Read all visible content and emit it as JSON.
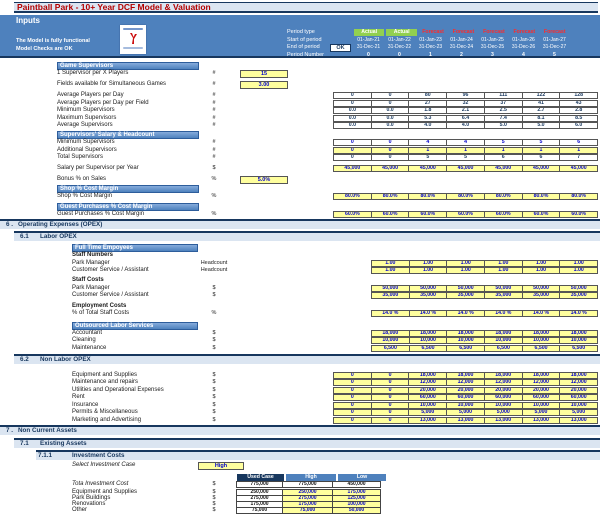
{
  "title": "Paintball Park - 10+ Year DCF Model & Valuation",
  "subtitle": "Inputs",
  "status": {
    "line1": "The Model is fully functional",
    "line2": "Model Checks are OK",
    "ok_badge": "OK"
  },
  "colors": {
    "header_blue": "#4e81bd",
    "navy": "#17375e",
    "title_red": "#b30000",
    "input_yellow": "#ffff9e",
    "actual_green": "#92d050",
    "forecast_red": "#ff2a2a",
    "formula_blue": "#0000cc"
  },
  "period": {
    "labels": {
      "type": "Period type",
      "start": "Start of period",
      "end": "End of period",
      "number": "Period Number"
    },
    "types": [
      {
        "label": "Actual",
        "kind": "actual"
      },
      {
        "label": "Actual",
        "kind": "actual"
      },
      {
        "label": "Forecast",
        "kind": "forecast"
      },
      {
        "label": "Forecast",
        "kind": "forecast"
      },
      {
        "label": "Forecast",
        "kind": "forecast"
      },
      {
        "label": "Forecast",
        "kind": "forecast"
      },
      {
        "label": "Forecast",
        "kind": "forecast"
      }
    ],
    "start": [
      "01-Jan-21",
      "01-Jan-22",
      "01-Jan-23",
      "01-Jan-24",
      "01-Jan-25",
      "01-Jan-26",
      "01-Jan-27"
    ],
    "end": [
      "31-Dec-21",
      "31-Dec-22",
      "31-Dec-23",
      "31-Dec-24",
      "31-Dec-25",
      "31-Dec-26",
      "31-Dec-27"
    ],
    "numbers": [
      "0",
      "0",
      "1",
      "2",
      "3",
      "4",
      "5"
    ]
  },
  "gs": {
    "header": "Game Supervisors",
    "input1": {
      "label": "1 Supervisor per X Players",
      "unit": "#",
      "value": "15"
    },
    "input2": {
      "label": "Fields available for Simultaneous Games",
      "unit": "#",
      "value": "3.00"
    },
    "rows": [
      {
        "label": "Average Players per Day",
        "unit": "#",
        "values": [
          "0",
          "0",
          "80",
          "96",
          "111",
          "122",
          "128"
        ]
      },
      {
        "label": "Average Players per Day per Field",
        "unit": "#",
        "values": [
          "0",
          "0",
          "27",
          "32",
          "37",
          "41",
          "43"
        ]
      },
      {
        "label": "Minimum Supervisors",
        "unit": "#",
        "values": [
          "0.0",
          "0.0",
          "1.8",
          "2.1",
          "2.5",
          "2.7",
          "2.8"
        ]
      },
      {
        "label": "Maximum Supervisors",
        "unit": "#",
        "values": [
          "0.0",
          "0.0",
          "5.3",
          "6.4",
          "7.4",
          "8.1",
          "8.5"
        ]
      },
      {
        "label": "Average Supervisors",
        "unit": "#",
        "values": [
          "0.0",
          "0.0",
          "4.0",
          "4.0",
          "5.0",
          "5.0",
          "6.0"
        ]
      }
    ]
  },
  "sal": {
    "header": "Supervisors' Salary & Headcount",
    "min": {
      "label": "Minimum Supervisors",
      "unit": "#",
      "values": [
        "0",
        "0",
        "4",
        "4",
        "5",
        "5",
        "6"
      ]
    },
    "add": {
      "label": "Additional Supervisors",
      "unit": "#",
      "values": [
        "0",
        "0",
        "1",
        "1",
        "1",
        "1",
        "1"
      ]
    },
    "total": {
      "label": "Total Supervisors",
      "unit": "#",
      "values": [
        "0",
        "0",
        "5",
        "5",
        "6",
        "6",
        "7"
      ]
    },
    "salary": {
      "label": "Salary per Supervisor per Year",
      "unit": "$",
      "values": [
        "45,000",
        "45,000",
        "45,000",
        "45,000",
        "45,000",
        "45,000",
        "45,000"
      ]
    },
    "bonus": {
      "label": "Bonus % on Sales",
      "unit": "%",
      "value": "5.0%"
    }
  },
  "shop": {
    "header": "Shop % Cost Margin",
    "row": {
      "label": "Shop % Cost Margin",
      "unit": "%",
      "values": [
        "80.0%",
        "80.0%",
        "80.0%",
        "80.0%",
        "80.0%",
        "80.0%",
        "80.0%"
      ]
    }
  },
  "guest": {
    "header": "Guest Purchases % Cost Margin",
    "row": {
      "label": "Guest Purchases % Cost Margin",
      "unit": "%",
      "values": [
        "60.0%",
        "60.0%",
        "60.0%",
        "60.0%",
        "60.0%",
        "60.0%",
        "60.0%"
      ]
    }
  },
  "secs": {
    "opex": {
      "num": "6 .",
      "label": "Operating Expenses (OPEX)"
    },
    "labor": {
      "num": "6.1",
      "label": "Labor OPEX"
    },
    "nonlabor": {
      "num": "6.2",
      "label": "Non Labor OPEX"
    },
    "nca": {
      "num": "7 .",
      "label": "Non Current Assets"
    },
    "existing": {
      "num": "7.1",
      "label": "Existing Assets"
    },
    "invest": {
      "num": "7.1.1",
      "label": "Investment Costs"
    }
  },
  "labor": {
    "fte_header": "Full Time Empoyees",
    "staff_numbers_label": "Staff Numbers",
    "hc_rows": [
      {
        "label": "Park Manager",
        "unit": "Headcount",
        "values": [
          "1.00",
          "1.00",
          "1.00",
          "1.00",
          "1.00",
          "1.00"
        ]
      },
      {
        "label": "Customer Service / Assistant",
        "unit": "Headcount",
        "values": [
          "1.00",
          "1.00",
          "1.00",
          "1.00",
          "1.00",
          "1.00"
        ]
      }
    ],
    "staff_costs_label": "Staff Costs",
    "cost_rows": [
      {
        "label": "Park Manager",
        "unit": "$",
        "values": [
          "50,000",
          "50,000",
          "50,000",
          "50,000",
          "50,000",
          "50,000"
        ]
      },
      {
        "label": "Customer Service / Assistant",
        "unit": "$",
        "values": [
          "35,000",
          "35,000",
          "35,000",
          "35,000",
          "35,000",
          "35,000"
        ]
      }
    ],
    "employment_label": "Employment Costs",
    "pct_row": {
      "label": "% of Total Staff Costs",
      "unit": "%",
      "values": [
        "14.0 %",
        "14.0 %",
        "14.0 %",
        "14.0 %",
        "14.0 %",
        "14.0 %"
      ]
    },
    "outsourced_header": "Outsourced Labor Services",
    "out_rows": [
      {
        "label": "Accountant",
        "unit": "$",
        "values": [
          "18,000",
          "18,000",
          "18,000",
          "18,000",
          "18,000",
          "18,000"
        ]
      },
      {
        "label": "Cleaning",
        "unit": "$",
        "values": [
          "10,000",
          "10,000",
          "10,000",
          "10,000",
          "10,000",
          "10,000"
        ]
      },
      {
        "label": "Maintenance",
        "unit": "$",
        "values": [
          "6,500",
          "6,500",
          "6,500",
          "6,500",
          "6,500",
          "6,500"
        ]
      }
    ]
  },
  "nl": {
    "rows": [
      {
        "label": "Equipment and Supplies",
        "unit": "$",
        "values": [
          "0",
          "0",
          "18,000",
          "18,000",
          "18,000",
          "18,000",
          "18,000"
        ]
      },
      {
        "label": "Maintenance and repairs",
        "unit": "$",
        "values": [
          "0",
          "0",
          "12,000",
          "12,000",
          "12,000",
          "12,000",
          "12,000"
        ]
      },
      {
        "label": "Utilities and Operational Expenses",
        "unit": "$",
        "values": [
          "0",
          "0",
          "20,000",
          "20,000",
          "20,000",
          "20,000",
          "20,000"
        ]
      },
      {
        "label": "Rent",
        "unit": "$",
        "values": [
          "0",
          "0",
          "60,000",
          "60,000",
          "60,000",
          "60,000",
          "60,000"
        ]
      },
      {
        "label": "Insurance",
        "unit": "$",
        "values": [
          "0",
          "0",
          "10,000",
          "10,000",
          "10,000",
          "10,000",
          "10,000"
        ]
      },
      {
        "label": "Permits & Miscellaneous",
        "unit": "$",
        "values": [
          "0",
          "0",
          "5,000",
          "5,000",
          "5,000",
          "5,000",
          "5,000"
        ]
      },
      {
        "label": "Marketing and Advertising",
        "unit": "$",
        "values": [
          "0",
          "0",
          "13,000",
          "13,000",
          "13,000",
          "13,000",
          "13,000"
        ]
      }
    ]
  },
  "inv": {
    "select_label": "Select Investment Case",
    "select_value": "High",
    "headers": [
      "Used Case",
      "High",
      "Low"
    ],
    "rows": [
      {
        "label": "Tota Investment Cost",
        "unit": "$",
        "cells": [
          {
            "v": "775,000",
            "cls": "calc"
          },
          {
            "v": "775,000",
            "cls": "calc"
          },
          {
            "v": "450,000",
            "cls": "calc"
          }
        ]
      },
      {
        "label": "Equipment and Supplies",
        "unit": "$",
        "cells": [
          {
            "v": "250,000",
            "cls": "calc"
          },
          {
            "v": "250,000",
            "cls": "input"
          },
          {
            "v": "175,000",
            "cls": "input"
          }
        ]
      },
      {
        "label": "Park Buildings",
        "unit": "$",
        "cells": [
          {
            "v": "275,000",
            "cls": "calc"
          },
          {
            "v": "275,000",
            "cls": "input"
          },
          {
            "v": "125,000",
            "cls": "input"
          }
        ]
      },
      {
        "label": "Renovations",
        "unit": "$",
        "cells": [
          {
            "v": "175,000",
            "cls": "calc"
          },
          {
            "v": "175,000",
            "cls": "input"
          },
          {
            "v": "100,000",
            "cls": "input"
          }
        ]
      },
      {
        "label": "Other",
        "unit": "$",
        "cells": [
          {
            "v": "75,000",
            "cls": "calc"
          },
          {
            "v": "75,000",
            "cls": "input"
          },
          {
            "v": "50,000",
            "cls": "input"
          }
        ]
      }
    ]
  }
}
